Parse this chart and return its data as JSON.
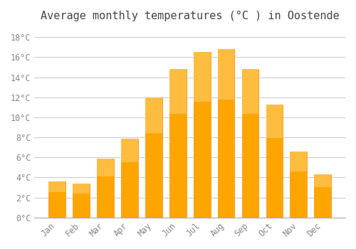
{
  "title": "Average monthly temperatures (°C ) in Oostende",
  "months": [
    "Jan",
    "Feb",
    "Mar",
    "Apr",
    "May",
    "Jun",
    "Jul",
    "Aug",
    "Sep",
    "Oct",
    "Nov",
    "Dec"
  ],
  "values": [
    3.6,
    3.4,
    5.9,
    7.9,
    12.0,
    14.8,
    16.5,
    16.8,
    14.8,
    11.3,
    6.6,
    4.3
  ],
  "bar_color": "#FFA500",
  "bar_edge_color": "#FF8C00",
  "background_color": "#ffffff",
  "grid_color": "#cccccc",
  "ylim": [
    0,
    19
  ],
  "yticks": [
    0,
    2,
    4,
    6,
    8,
    10,
    12,
    14,
    16,
    18
  ],
  "title_fontsize": 11,
  "tick_fontsize": 8.5,
  "font_family": "monospace"
}
